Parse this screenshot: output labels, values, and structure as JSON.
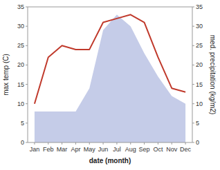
{
  "chart_data": {
    "type": "line",
    "xlabel": "date (month)",
    "ylabel": "max temp (C)",
    "y2label": "med. precipitation (kg/m2)",
    "categories": [
      "Jan",
      "Feb",
      "Mar",
      "Apr",
      "May",
      "Jun",
      "Jul",
      "Aug",
      "Sep",
      "Oct",
      "Nov",
      "Dec"
    ],
    "series": [
      {
        "type": "area",
        "axis": "y2",
        "color": "#c5cce8",
        "values": [
          8,
          8,
          8,
          8,
          14,
          29,
          33,
          30,
          23,
          17,
          12,
          10
        ]
      },
      {
        "type": "line",
        "color": "#c0392b",
        "values": [
          10,
          22,
          25,
          24,
          24,
          31,
          32,
          33,
          31,
          22,
          14,
          13
        ]
      }
    ],
    "ylim": [
      0,
      35
    ],
    "yticks": [
      0,
      5,
      10,
      15,
      20,
      25,
      30,
      35
    ],
    "y2lim": [
      0,
      35
    ],
    "y2ticks": [
      0,
      5,
      10,
      15,
      20,
      25,
      30,
      35
    ],
    "grid": false
  }
}
